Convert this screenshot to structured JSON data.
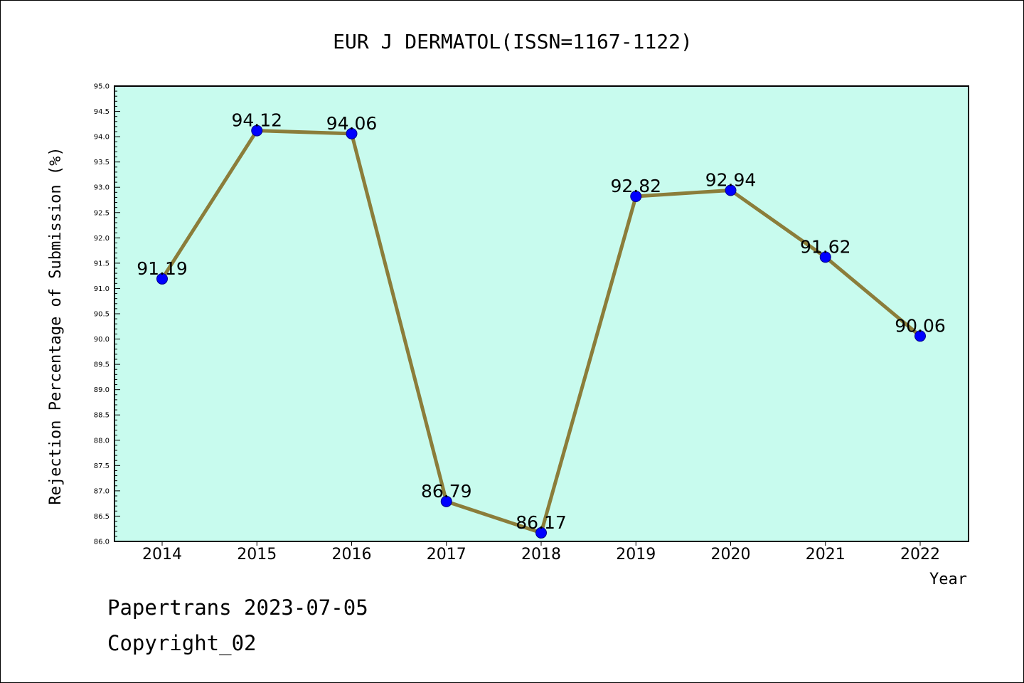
{
  "chart_data": {
    "type": "line",
    "title": "EUR J DERMATOL(ISSN=1167-1122)",
    "xlabel": "Year",
    "ylabel": "Rejection Percentage of Submission (%)",
    "categories": [
      "2014",
      "2015",
      "2016",
      "2017",
      "2018",
      "2019",
      "2020",
      "2021",
      "2022"
    ],
    "series": [
      {
        "values": [
          91.19,
          94.12,
          94.06,
          86.79,
          86.17,
          92.82,
          92.94,
          91.62,
          90.06
        ],
        "labels": [
          "91.19",
          "94.12",
          "94.06",
          "86.79",
          "86.17",
          "92.82",
          "92.94",
          "91.62",
          "90.06"
        ],
        "line_color": "#8B7D3A",
        "marker_color": "#0000FF"
      }
    ],
    "ylim": [
      86.0,
      95.0
    ],
    "y_ticks": [
      "86.0",
      "86.5",
      "87.0",
      "87.5",
      "88.0",
      "88.5",
      "89.0",
      "89.5",
      "90.0",
      "90.5",
      "91.0",
      "91.5",
      "92.0",
      "92.5",
      "93.0",
      "93.5",
      "94.0",
      "94.5",
      "95.0"
    ],
    "grid": false,
    "plot_background": "#C8FBEE"
  },
  "footer": {
    "line1": "Papertrans 2023-07-05",
    "line2": "Copyright_02"
  }
}
